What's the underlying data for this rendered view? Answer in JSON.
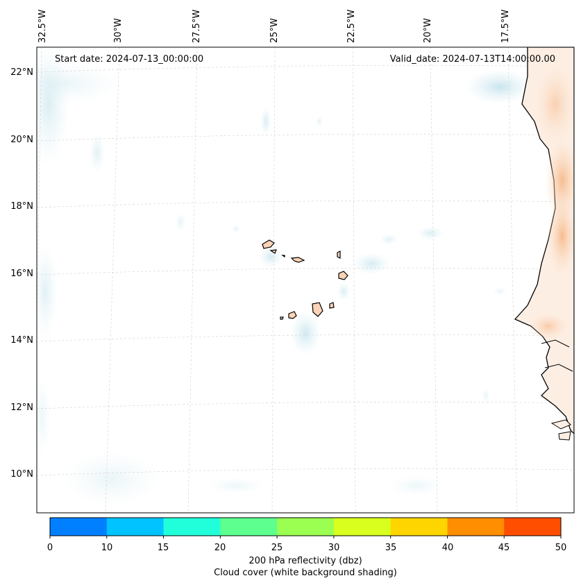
{
  "map": {
    "start_date": "Start date: 2024-07-13_00:00:00",
    "valid_date": "Valid_date: 2024-07-13T14:00:00.00",
    "lon_labels": [
      "32.5°W",
      "30°W",
      "27.5°W",
      "25°W",
      "22.5°W",
      "20°W",
      "17.5°W"
    ],
    "lat_labels": [
      "22°N",
      "20°N",
      "18°N",
      "16°N",
      "14°N",
      "12°N",
      "10°N"
    ]
  },
  "colorbar": {
    "ticks": [
      "0",
      "10",
      "15",
      "20",
      "25",
      "30",
      "35",
      "40",
      "45",
      "50"
    ],
    "colors": [
      "#0080ff",
      "#00c3ff",
      "#20ffd9",
      "#5dff8f",
      "#9bff52",
      "#d8ff1d",
      "#ffd500",
      "#ff8e00",
      "#ff4e00"
    ],
    "label": "200 hPa reflectivity (dbz)",
    "sublabel": "Cloud cover (white background shading)"
  }
}
